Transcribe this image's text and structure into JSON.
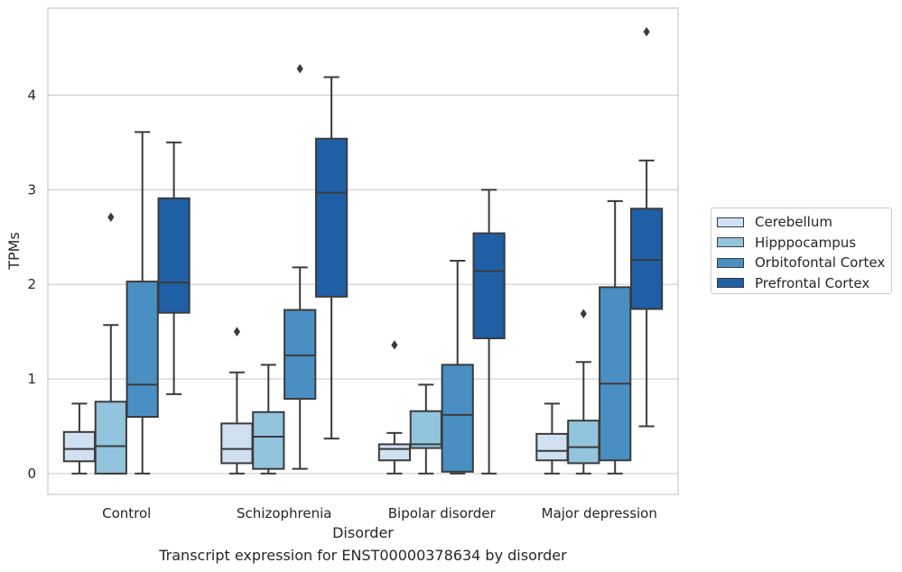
{
  "chart_data": {
    "type": "box",
    "title": "",
    "xlabel": "Disorder",
    "ylabel": "TPMs",
    "ylim": [
      -0.22,
      4.92
    ],
    "yticks": [
      0,
      1,
      2,
      3,
      4
    ],
    "grid": "horizontal",
    "legend_position": "outside-right",
    "categories": [
      "Control",
      "Schizophrenia",
      "Bipolar disorder",
      "Major depression"
    ],
    "series": [
      {
        "name": "Cerebellum",
        "color": "#cfe0f1",
        "boxes": [
          {
            "whisker_low": 0.0,
            "q1": 0.13,
            "median": 0.26,
            "q3": 0.44,
            "whisker_high": 0.74,
            "outliers": []
          },
          {
            "whisker_low": 0.0,
            "q1": 0.11,
            "median": 0.26,
            "q3": 0.53,
            "whisker_high": 1.07,
            "outliers": [
              1.5
            ]
          },
          {
            "whisker_low": 0.0,
            "q1": 0.14,
            "median": 0.26,
            "q3": 0.31,
            "whisker_high": 0.43,
            "outliers": [
              1.36
            ]
          },
          {
            "whisker_low": 0.0,
            "q1": 0.14,
            "median": 0.24,
            "q3": 0.42,
            "whisker_high": 0.74,
            "outliers": []
          }
        ]
      },
      {
        "name": "Hipppocampus",
        "color": "#93c4de",
        "boxes": [
          {
            "whisker_low": 0.0,
            "q1": 0.0,
            "median": 0.29,
            "q3": 0.76,
            "whisker_high": 1.57,
            "outliers": [
              2.71
            ]
          },
          {
            "whisker_low": 0.0,
            "q1": 0.05,
            "median": 0.39,
            "q3": 0.65,
            "whisker_high": 1.15,
            "outliers": []
          },
          {
            "whisker_low": 0.0,
            "q1": 0.27,
            "median": 0.31,
            "q3": 0.66,
            "whisker_high": 0.94,
            "outliers": []
          },
          {
            "whisker_low": 0.0,
            "q1": 0.11,
            "median": 0.28,
            "q3": 0.56,
            "whisker_high": 1.18,
            "outliers": [
              1.69
            ]
          }
        ]
      },
      {
        "name": "Orbitofontal Cortex",
        "color": "#4a8fc3",
        "boxes": [
          {
            "whisker_low": 0.0,
            "q1": 0.6,
            "median": 0.94,
            "q3": 2.03,
            "whisker_high": 3.61,
            "outliers": []
          },
          {
            "whisker_low": 0.05,
            "q1": 0.79,
            "median": 1.25,
            "q3": 1.73,
            "whisker_high": 2.18,
            "outliers": [
              4.28
            ]
          },
          {
            "whisker_low": 0.0,
            "q1": 0.02,
            "median": 0.62,
            "q3": 1.15,
            "whisker_high": 2.25,
            "outliers": []
          },
          {
            "whisker_low": 0.0,
            "q1": 0.14,
            "median": 0.95,
            "q3": 1.97,
            "whisker_high": 2.88,
            "outliers": []
          }
        ]
      },
      {
        "name": "Prefrontal Cortex",
        "color": "#1f5fa6",
        "boxes": [
          {
            "whisker_low": 0.84,
            "q1": 1.7,
            "median": 2.02,
            "q3": 2.91,
            "whisker_high": 3.5,
            "outliers": []
          },
          {
            "whisker_low": 0.37,
            "q1": 1.87,
            "median": 2.97,
            "q3": 3.54,
            "whisker_high": 4.19,
            "outliers": []
          },
          {
            "whisker_low": 0.0,
            "q1": 1.43,
            "median": 2.14,
            "q3": 2.54,
            "whisker_high": 3.0,
            "outliers": []
          },
          {
            "whisker_low": 0.5,
            "q1": 1.74,
            "median": 2.26,
            "q3": 2.8,
            "whisker_high": 3.31,
            "outliers": [
              4.67
            ]
          }
        ]
      }
    ]
  },
  "caption": "Transcript expression for ENST00000378634 by disorder"
}
